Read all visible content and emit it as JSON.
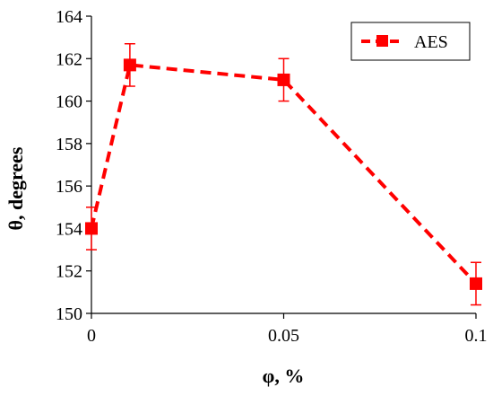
{
  "chart_data": {
    "type": "line",
    "xlabel": "φ, %",
    "ylabel": "θ, degrees",
    "xlim": [
      0,
      0.1
    ],
    "ylim": [
      150,
      164
    ],
    "x_ticks": [
      "0",
      "0.05",
      "0.1"
    ],
    "x_tick_values": [
      0,
      0.05,
      0.1
    ],
    "y_ticks": [
      "150",
      "152",
      "154",
      "156",
      "158",
      "160",
      "162",
      "164"
    ],
    "y_tick_values": [
      150,
      152,
      154,
      156,
      158,
      160,
      162,
      164
    ],
    "grid": false,
    "legend": {
      "position": "top-right"
    },
    "series": [
      {
        "name": "AES",
        "color": "#ff0000",
        "line_style": "dashed",
        "marker": "square",
        "x": [
          0,
          0.01,
          0.05,
          0.1
        ],
        "y": [
          154.0,
          161.7,
          161.0,
          151.4
        ],
        "error": [
          1.0,
          1.0,
          1.0,
          1.0
        ]
      }
    ]
  }
}
